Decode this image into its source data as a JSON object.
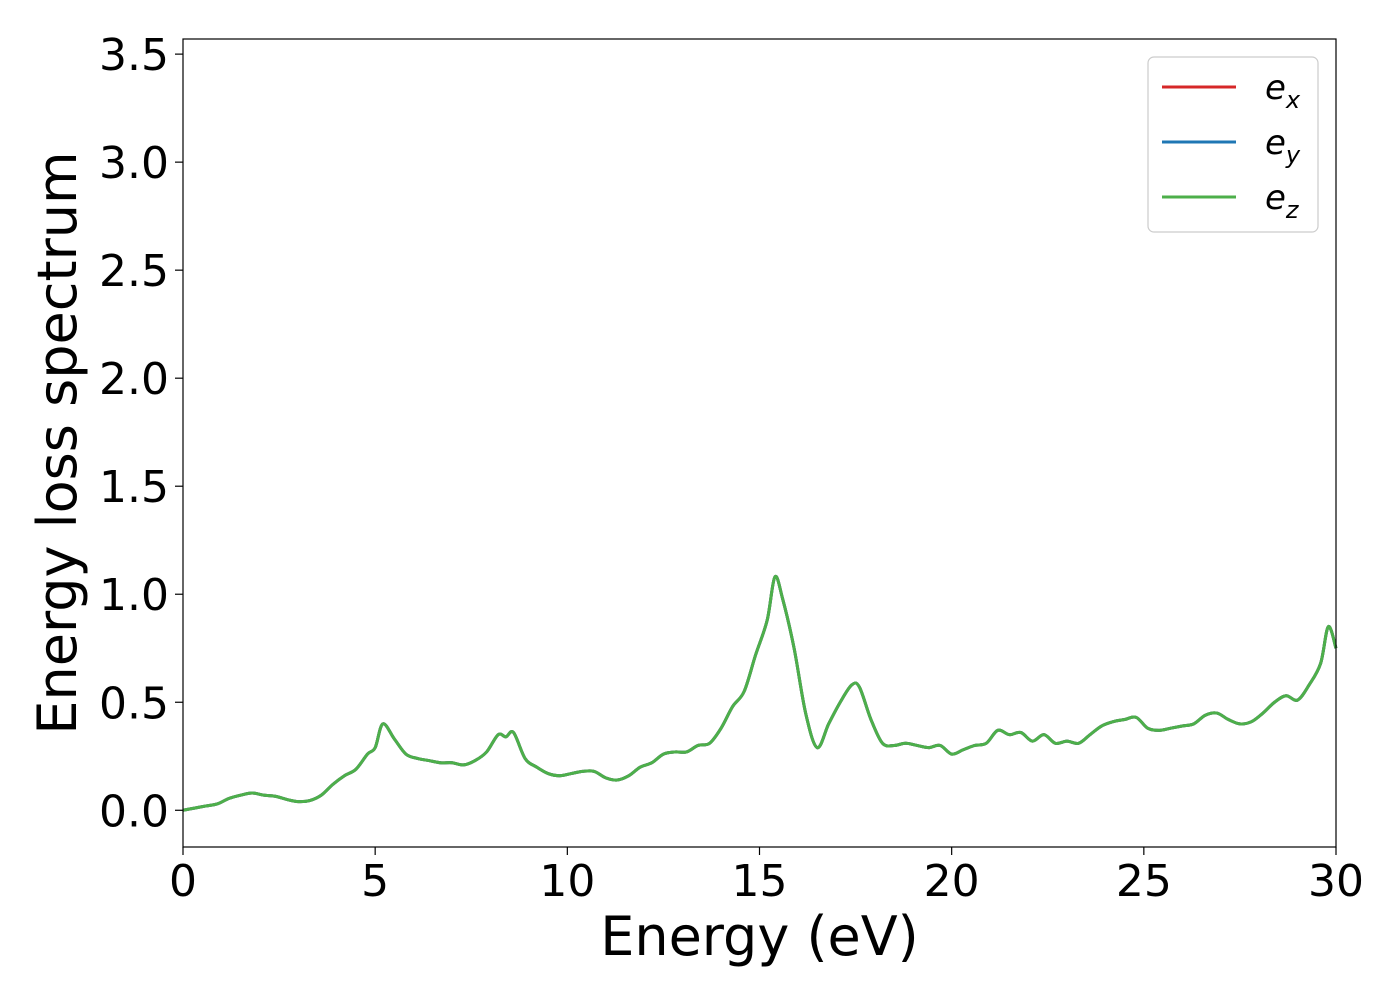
{
  "chart_data": {
    "type": "line",
    "xlabel": "Energy (eV)",
    "ylabel": "Energy loss spectrum",
    "xlim": [
      0,
      30
    ],
    "ylim": [
      -0.17,
      3.57
    ],
    "xticks": [
      0,
      5,
      10,
      15,
      20,
      25,
      30
    ],
    "xtick_labels": [
      "0",
      "5",
      "10",
      "15",
      "20",
      "25",
      "30"
    ],
    "yticks": [
      0.0,
      0.5,
      1.0,
      1.5,
      2.0,
      2.5,
      3.0,
      3.5
    ],
    "ytick_labels": [
      "0.0",
      "0.5",
      "1.0",
      "1.5",
      "2.0",
      "2.5",
      "3.0",
      "3.5"
    ],
    "grid": false,
    "legend_position": "upper-right",
    "x": [
      0.0,
      0.3,
      0.6,
      0.9,
      1.2,
      1.5,
      1.8,
      2.1,
      2.4,
      2.7,
      3.0,
      3.3,
      3.6,
      3.9,
      4.2,
      4.5,
      4.8,
      5.0,
      5.2,
      5.5,
      5.8,
      6.1,
      6.4,
      6.7,
      7.0,
      7.3,
      7.6,
      7.9,
      8.2,
      8.4,
      8.6,
      8.9,
      9.2,
      9.5,
      9.8,
      10.1,
      10.4,
      10.7,
      11.0,
      11.3,
      11.6,
      11.9,
      12.2,
      12.5,
      12.8,
      13.1,
      13.4,
      13.7,
      14.0,
      14.3,
      14.6,
      14.9,
      15.2,
      15.4,
      15.6,
      15.9,
      16.2,
      16.5,
      16.8,
      17.1,
      17.4,
      17.6,
      17.9,
      18.2,
      18.5,
      18.8,
      19.1,
      19.4,
      19.7,
      20.0,
      20.3,
      20.6,
      20.9,
      21.2,
      21.5,
      21.8,
      22.1,
      22.4,
      22.7,
      23.0,
      23.3,
      23.6,
      23.9,
      24.2,
      24.5,
      24.8,
      25.1,
      25.4,
      25.7,
      26.0,
      26.3,
      26.6,
      26.9,
      27.2,
      27.5,
      27.8,
      28.1,
      28.4,
      28.7,
      29.0,
      29.3,
      29.6,
      29.8,
      30.0
    ],
    "series": [
      {
        "name": "e_x",
        "label_base": "e",
        "label_sub": "x",
        "color": "#d62728",
        "values": [
          0.0,
          0.01,
          0.02,
          0.03,
          0.055,
          0.07,
          0.08,
          0.07,
          0.065,
          0.05,
          0.04,
          0.045,
          0.07,
          0.12,
          0.16,
          0.19,
          0.26,
          0.29,
          0.4,
          0.33,
          0.26,
          0.24,
          0.23,
          0.22,
          0.22,
          0.21,
          0.23,
          0.27,
          0.35,
          0.34,
          0.36,
          0.24,
          0.2,
          0.17,
          0.16,
          0.17,
          0.18,
          0.18,
          0.15,
          0.14,
          0.16,
          0.2,
          0.22,
          0.26,
          0.27,
          0.27,
          0.3,
          0.31,
          0.38,
          0.48,
          0.55,
          0.72,
          0.88,
          1.08,
          0.98,
          0.75,
          0.45,
          0.29,
          0.4,
          0.5,
          0.58,
          0.57,
          0.42,
          0.31,
          0.3,
          0.31,
          0.3,
          0.29,
          0.3,
          0.26,
          0.28,
          0.3,
          0.31,
          0.37,
          0.35,
          0.36,
          0.32,
          0.35,
          0.31,
          0.32,
          0.31,
          0.35,
          0.39,
          0.41,
          0.42,
          0.43,
          0.38,
          0.37,
          0.38,
          0.39,
          0.4,
          0.44,
          0.45,
          0.42,
          0.4,
          0.41,
          0.45,
          0.5,
          0.53,
          0.51,
          0.58,
          0.68,
          0.85,
          0.75
        ]
      },
      {
        "name": "e_y",
        "label_base": "e",
        "label_sub": "y",
        "color": "#1f77b4",
        "values": [
          0.0,
          0.01,
          0.02,
          0.03,
          0.055,
          0.07,
          0.08,
          0.07,
          0.065,
          0.05,
          0.04,
          0.045,
          0.07,
          0.12,
          0.16,
          0.19,
          0.26,
          0.29,
          0.4,
          0.33,
          0.26,
          0.24,
          0.23,
          0.22,
          0.22,
          0.21,
          0.23,
          0.27,
          0.35,
          0.34,
          0.36,
          0.24,
          0.2,
          0.17,
          0.16,
          0.17,
          0.18,
          0.18,
          0.15,
          0.14,
          0.16,
          0.2,
          0.22,
          0.26,
          0.27,
          0.27,
          0.3,
          0.31,
          0.38,
          0.48,
          0.55,
          0.72,
          0.88,
          1.08,
          0.98,
          0.75,
          0.45,
          0.29,
          0.4,
          0.5,
          0.58,
          0.57,
          0.42,
          0.31,
          0.3,
          0.31,
          0.3,
          0.29,
          0.3,
          0.26,
          0.28,
          0.3,
          0.31,
          0.37,
          0.35,
          0.36,
          0.32,
          0.35,
          0.31,
          0.32,
          0.31,
          0.35,
          0.39,
          0.41,
          0.42,
          0.43,
          0.38,
          0.37,
          0.38,
          0.39,
          0.4,
          0.44,
          0.45,
          0.42,
          0.4,
          0.41,
          0.45,
          0.5,
          0.53,
          0.51,
          0.58,
          0.68,
          0.85,
          0.75
        ]
      },
      {
        "name": "e_z",
        "label_base": "e",
        "label_sub": "z",
        "color": "#4daf4a",
        "values": [
          0.0,
          0.01,
          0.02,
          0.03,
          0.055,
          0.07,
          0.08,
          0.07,
          0.065,
          0.05,
          0.04,
          0.045,
          0.07,
          0.12,
          0.16,
          0.19,
          0.26,
          0.29,
          0.4,
          0.33,
          0.26,
          0.24,
          0.23,
          0.22,
          0.22,
          0.21,
          0.23,
          0.27,
          0.35,
          0.34,
          0.36,
          0.24,
          0.2,
          0.17,
          0.16,
          0.17,
          0.18,
          0.18,
          0.15,
          0.14,
          0.16,
          0.2,
          0.22,
          0.26,
          0.27,
          0.27,
          0.3,
          0.31,
          0.38,
          0.48,
          0.55,
          0.72,
          0.88,
          1.08,
          0.98,
          0.75,
          0.45,
          0.29,
          0.4,
          0.5,
          0.58,
          0.57,
          0.42,
          0.31,
          0.3,
          0.31,
          0.3,
          0.29,
          0.3,
          0.26,
          0.28,
          0.3,
          0.31,
          0.37,
          0.35,
          0.36,
          0.32,
          0.35,
          0.31,
          0.32,
          0.31,
          0.35,
          0.39,
          0.41,
          0.42,
          0.43,
          0.38,
          0.37,
          0.38,
          0.39,
          0.4,
          0.44,
          0.45,
          0.42,
          0.4,
          0.41,
          0.45,
          0.5,
          0.53,
          0.51,
          0.58,
          0.68,
          0.85,
          0.75
        ]
      }
    ]
  }
}
